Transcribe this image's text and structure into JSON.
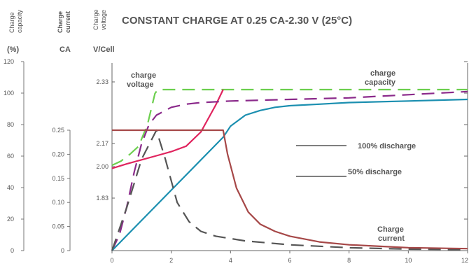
{
  "chart_data": {
    "type": "line",
    "title": "CONSTANT CHARGE AT 0.25 CA-2.30 V (25°C)",
    "xlabel": "",
    "x_ticks": [
      0,
      2,
      4,
      6,
      8,
      10,
      12
    ],
    "xlim": [
      0,
      12
    ],
    "axes": {
      "capacity": {
        "header": [
          "Charge",
          "capacity"
        ],
        "unit": "(%)",
        "ylim": [
          0,
          120
        ],
        "ticks": [
          0,
          20,
          40,
          60,
          80,
          100,
          120
        ]
      },
      "current": {
        "header": [
          "Charge",
          "current"
        ],
        "unit": "CA",
        "ylim": [
          0,
          0.25
        ],
        "ticks": [
          "0",
          "0.05",
          "0.10",
          "0.15",
          "0.20",
          "0.25"
        ]
      },
      "voltage": {
        "header": [
          "Charge",
          "voltage"
        ],
        "unit": "V/Cell",
        "ticks": [
          "1.83",
          "2.00",
          "2.17",
          "2.33"
        ],
        "tick_values": [
          1.83,
          2.0,
          2.17,
          2.33
        ]
      }
    },
    "series": [
      {
        "key": "v50",
        "axis": "voltage",
        "style": "dashed",
        "color": "#6ccf4e",
        "x": [
          0,
          0.3,
          0.6,
          0.9,
          1.2,
          1.45,
          1.55,
          2.0,
          4.0,
          6.0,
          8.0,
          10.0,
          12.0
        ],
        "y": [
          2.01,
          2.04,
          2.09,
          2.15,
          2.22,
          2.3,
          2.31,
          2.31,
          2.31,
          2.31,
          2.31,
          2.31,
          2.31
        ]
      },
      {
        "key": "v100",
        "axis": "voltage",
        "style": "solid",
        "color": "#e0245e",
        "x": [
          0,
          0.5,
          1.0,
          1.5,
          2.0,
          2.5,
          3.0,
          3.5,
          3.75
        ],
        "y": [
          1.99,
          2.02,
          2.05,
          2.08,
          2.11,
          2.15,
          2.2,
          2.27,
          2.31
        ]
      },
      {
        "key": "cap50",
        "axis": "capacity",
        "style": "dashed",
        "color": "#8b2a8b",
        "x": [
          0,
          0.25,
          0.5,
          0.75,
          1.0,
          1.25,
          1.5,
          2.0,
          2.5,
          3.0,
          4.0,
          6.0,
          8.0,
          10.0,
          12.0
        ],
        "y": [
          0,
          10,
          28,
          50,
          68,
          80,
          86,
          91,
          93,
          94,
          95,
          96,
          97,
          99,
          101
        ]
      },
      {
        "key": "cap100",
        "axis": "capacity",
        "style": "solid",
        "color": "#1b8fb0",
        "x": [
          0,
          3.75,
          4.0,
          4.5,
          5.0,
          5.5,
          6.0,
          7.0,
          8.0,
          10.0,
          12.0
        ],
        "y": [
          0,
          72,
          79,
          86,
          89,
          91,
          92,
          93,
          94,
          95,
          96
        ]
      },
      {
        "key": "cur50",
        "axis": "current",
        "style": "dashed",
        "color": "#555555",
        "x": [
          0,
          0.5,
          1.0,
          1.5,
          1.8,
          2.2,
          2.6,
          3.0,
          3.5,
          4.5,
          6.0,
          8.0,
          10.0,
          12.0
        ],
        "y": [
          0.0,
          0.09,
          0.19,
          0.25,
          0.19,
          0.1,
          0.06,
          0.04,
          0.03,
          0.02,
          0.012,
          0.006,
          0.003,
          0.002
        ]
      },
      {
        "key": "cur100",
        "axis": "current",
        "style": "solid",
        "color": "#a64848",
        "x": [
          0,
          3.75,
          3.9,
          4.2,
          4.6,
          5.0,
          5.5,
          6.0,
          7.0,
          8.0,
          10.0,
          12.0
        ],
        "y": [
          0.25,
          0.25,
          0.2,
          0.13,
          0.08,
          0.055,
          0.04,
          0.03,
          0.018,
          0.012,
          0.006,
          0.004
        ]
      }
    ],
    "annotations": {
      "charge_voltage": [
        "charge",
        "voltage"
      ],
      "charge_capacity": [
        "charge",
        "capacity"
      ],
      "charge_current": [
        "Charge",
        "current"
      ]
    },
    "legend": [
      {
        "label": "100% discharge",
        "style": "solid"
      },
      {
        "label": "50% discharge",
        "style": "solid"
      }
    ]
  }
}
